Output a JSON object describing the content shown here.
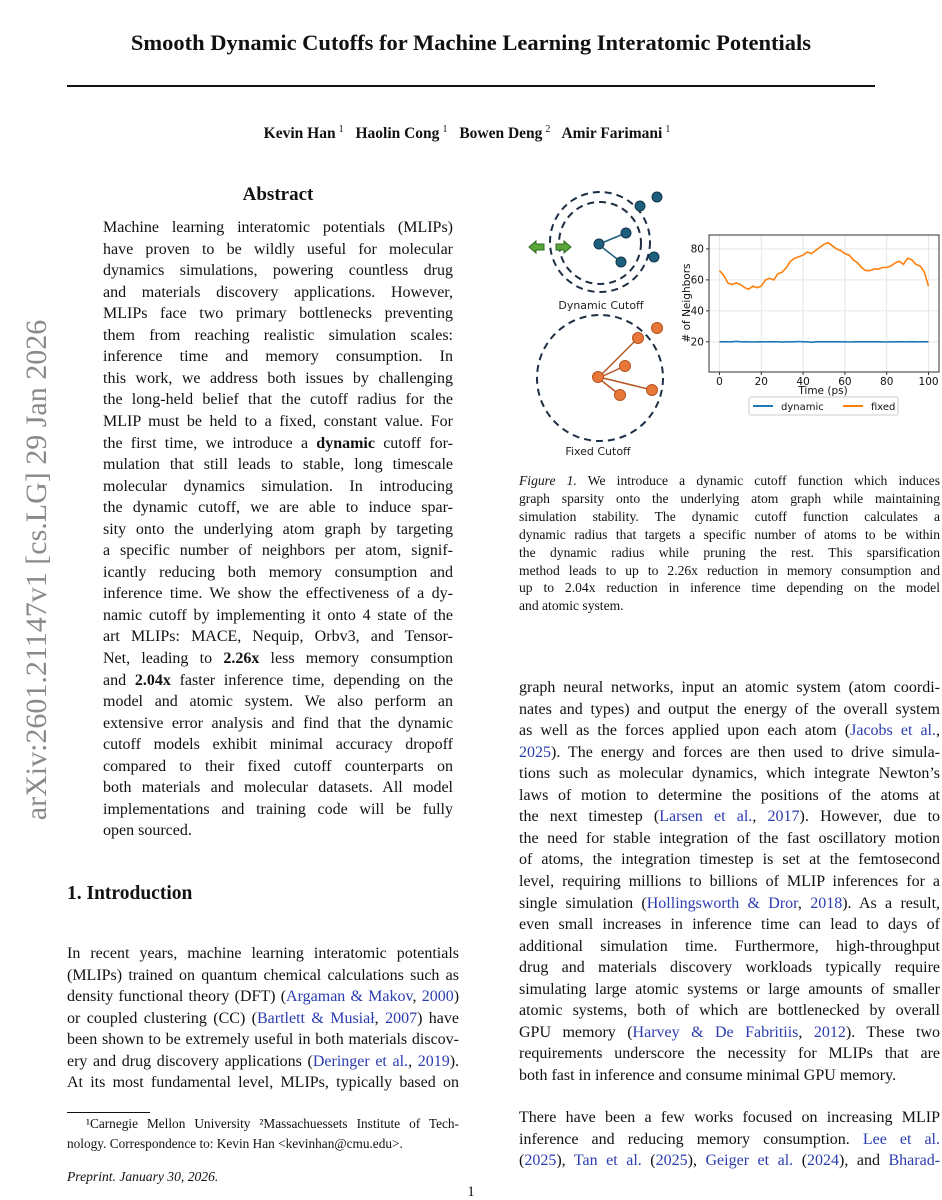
{
  "title": "Smooth Dynamic Cutoffs for Machine Learning Interatomic Potentials",
  "authors": [
    {
      "name": "Kevin Han",
      "aff": "1"
    },
    {
      "name": "Haolin Cong",
      "aff": "1"
    },
    {
      "name": "Bowen Deng",
      "aff": "2"
    },
    {
      "name": "Amir Farimani",
      "aff": "1"
    }
  ],
  "arxiv_stamp": "arXiv:2601.21147v1  [cs.LG]  29 Jan 2026",
  "abstract": {
    "heading": "Abstract",
    "lines": [
      [
        "Machine learning interatomic potentials (MLIPs)"
      ],
      [
        "have proven to be wildly useful for molecular"
      ],
      [
        "dynamics simulations, powering countless drug"
      ],
      [
        "and materials discovery applications. However,"
      ],
      [
        "MLIPs face two primary bottlenecks preventing"
      ],
      [
        "them from reaching realistic simulation scales:"
      ],
      [
        "inference time and memory consumption.  In"
      ],
      [
        "this work, we address both issues by challenging"
      ],
      [
        "the long-held belief that the cutoff radius for the"
      ],
      [
        "MLIP must be held to a fixed, constant value. For"
      ],
      [
        "the first time, we introduce a ",
        {
          "t": "dynamic",
          "s": "b"
        },
        " cutoff for-"
      ],
      [
        "mulation that still leads to stable, long timescale"
      ],
      [
        "molecular dynamics simulation.  In introducing"
      ],
      [
        "the dynamic cutoff, we are able to induce spar-"
      ],
      [
        "sity onto the underlying atom graph by targeting"
      ],
      [
        "a specific number of neighbors per atom, signif-"
      ],
      [
        "icantly reducing both memory consumption and"
      ],
      [
        "inference time. We show the effectiveness of a dy-"
      ],
      [
        "namic cutoff by implementing it onto 4 state of the"
      ],
      [
        "art MLIPs: MACE, Nequip, Orbv3, and Tensor-"
      ],
      [
        "Net, leading to ",
        {
          "t": "2.26x",
          "s": "b"
        },
        " less memory consumption"
      ],
      [
        "and ",
        {
          "t": "2.04x",
          "s": "b"
        },
        " faster inference time, depending on the"
      ],
      [
        "model and atomic system.  We also perform an"
      ],
      [
        "extensive error analysis and find that the dynamic"
      ],
      [
        "cutoff models exhibit minimal accuracy dropoff"
      ],
      [
        "compared to their fixed cutoff counterparts on"
      ],
      [
        "both materials and molecular datasets. All model"
      ],
      [
        "implementations and training code will be fully"
      ],
      [
        "open sourced."
      ]
    ]
  },
  "introduction": {
    "heading": "1. Introduction",
    "lines": [
      [
        "In recent years, machine learning interatomic potentials"
      ],
      [
        "(MLIPs) trained on quantum chemical calculations such as"
      ],
      [
        "density functional theory (DFT) (",
        {
          "t": "Argaman & Makov",
          "s": "c"
        },
        ", ",
        {
          "t": "2000",
          "s": "c"
        },
        ")"
      ],
      [
        "or coupled clustering (CC) (",
        {
          "t": "Bartlett & Musiał",
          "s": "c"
        },
        ", ",
        {
          "t": "2007",
          "s": "c"
        },
        ") have"
      ],
      [
        "been shown to be extremely useful in both materials discov-"
      ],
      [
        "ery and drug discovery applications (",
        {
          "t": "Deringer et al.",
          "s": "c"
        },
        ", ",
        {
          "t": "2019",
          "s": "c"
        },
        ")."
      ],
      [
        "At its most fundamental level, MLIPs, typically based on"
      ]
    ]
  },
  "footnote": {
    "lines": [
      [
        "¹Carnegie Mellon University ²Massachuessets Institute of Tech-"
      ],
      [
        "nology. Correspondence to: Kevin Han <kevinhan@cmu.edu>."
      ]
    ]
  },
  "preprint": "Preprint. January 30, 2026.",
  "page_number": "1",
  "figure": {
    "dynamic_label": "Dynamic Cutoff",
    "fixed_label": "Fixed Cutoff",
    "colors": {
      "dynamic_atom": "#1f5f7e",
      "fixed_atom": "#e8783a",
      "arrow": "#5aa63a",
      "circle": "#1d2e44"
    },
    "caption": [
      [
        {
          "t": "Figure 1.",
          "s": "i"
        },
        " We introduce a dynamic cutoff function which induces"
      ],
      [
        "graph sparsity onto the underlying atom graph while maintaining"
      ],
      [
        "simulation stability.  The dynamic cutoff function calculates a"
      ],
      [
        "dynamic radius that targets a specific number of atoms to be within"
      ],
      [
        "the dynamic radius while pruning the rest.  This sparsification"
      ],
      [
        "method leads to up to 2.26x reduction in memory consumption and"
      ],
      [
        "up to 2.04x reduction in inference time depending on the model"
      ],
      [
        "and atomic system."
      ]
    ]
  },
  "chart_data": {
    "type": "line",
    "xlabel": "Time (ps)",
    "ylabel": "# of Neighbors",
    "xlim": [
      -5,
      105
    ],
    "ylim": [
      0.5,
      89
    ],
    "xticks": [
      0,
      20,
      40,
      60,
      80,
      100
    ],
    "yticks": [
      20,
      40,
      60,
      80
    ],
    "grid": true,
    "legend": "bottom-center",
    "x": [
      0,
      2,
      4,
      6,
      8,
      10,
      12,
      14,
      16,
      18,
      20,
      22,
      24,
      26,
      28,
      30,
      32,
      34,
      36,
      38,
      40,
      42,
      44,
      46,
      48,
      50,
      52,
      54,
      56,
      58,
      60,
      62,
      64,
      66,
      68,
      70,
      72,
      74,
      76,
      78,
      80,
      82,
      84,
      86,
      88,
      90,
      92,
      94,
      96,
      98,
      100
    ],
    "series": [
      {
        "name": "dynamic",
        "color": "#1f77b4",
        "values": [
          20,
          20,
          20,
          20,
          20.3,
          20,
          20,
          20,
          19.9,
          20,
          20,
          20,
          20,
          20,
          20,
          19.8,
          20,
          20,
          20,
          20.2,
          20,
          20,
          19.7,
          20,
          20,
          20,
          20,
          20,
          20,
          20,
          20,
          19.9,
          20,
          20,
          20,
          20,
          20,
          20,
          20,
          20,
          19.9,
          20,
          20,
          20,
          20,
          20,
          20.1,
          20,
          20,
          20,
          20
        ]
      },
      {
        "name": "fixed",
        "color": "#ff7f0e",
        "values": [
          66,
          63,
          58,
          57,
          58,
          57,
          55,
          54,
          56,
          55,
          56,
          60,
          61,
          60,
          64,
          65,
          68,
          72,
          74,
          75,
          76,
          78,
          77,
          79,
          81,
          83,
          84,
          82,
          80,
          79,
          77,
          76,
          73,
          71,
          68,
          66,
          66,
          67,
          67,
          68,
          68,
          69,
          71,
          72,
          70,
          74,
          73,
          70,
          69,
          65,
          56
        ]
      }
    ]
  },
  "right_column": {
    "paragraphs": [
      [
        [
          "graph neural networks, input an atomic system (atom coordi-"
        ],
        [
          "nates and types) and output the energy of the overall system"
        ],
        [
          "as well as the forces applied upon each atom (",
          {
            "t": "Jacobs et al.",
            "s": "c"
          },
          ","
        ],
        [
          {
            "t": "2025",
            "s": "c"
          },
          "). The energy and forces are then used to drive simula-"
        ],
        [
          "tions such as molecular dynamics, which integrate Newton’s"
        ],
        [
          "laws of motion to determine the positions of the atoms at"
        ],
        [
          "the next timestep (",
          {
            "t": "Larsen et al.",
            "s": "c"
          },
          ", ",
          {
            "t": "2017",
            "s": "c"
          },
          ").  However, due to"
        ],
        [
          "the need for stable integration of the fast oscillatory motion"
        ],
        [
          "of atoms, the integration timestep is set at the femtosecond"
        ],
        [
          "level, requiring millions to billions of MLIP inferences for a"
        ],
        [
          "single simulation (",
          {
            "t": "Hollingsworth & Dror",
            "s": "c"
          },
          ", ",
          {
            "t": "2018",
            "s": "c"
          },
          "). As a result,"
        ],
        [
          "even small increases in inference time can lead to days of"
        ],
        [
          "additional simulation time. Furthermore, high-throughput"
        ],
        [
          "drug and materials discovery workloads typically require"
        ],
        [
          "simulating large atomic systems or large amounts of smaller"
        ],
        [
          "atomic systems, both of which are bottlenecked by overall"
        ],
        [
          "GPU memory (",
          {
            "t": "Harvey & De Fabritiis",
            "s": "c"
          },
          ", ",
          {
            "t": "2012",
            "s": "c"
          },
          ").  These two"
        ],
        [
          "requirements underscore the necessity for MLIPs that are"
        ],
        [
          "both fast in inference and consume minimal GPU memory."
        ]
      ],
      [
        [
          "There have been a few works focused on increasing MLIP"
        ],
        [
          "inference and reducing memory consumption.  ",
          {
            "t": "Lee et al.",
            "s": "c"
          }
        ],
        [
          "(",
          {
            "t": "2025",
            "s": "c"
          },
          "), ",
          {
            "t": "Tan et al.",
            "s": "c"
          },
          " (",
          {
            "t": "2025",
            "s": "c"
          },
          "), ",
          {
            "t": "Geiger et al.",
            "s": "c"
          },
          " (",
          {
            "t": "2024",
            "s": "c"
          },
          "), and ",
          {
            "t": "Bharad-",
            "s": "c"
          }
        ]
      ]
    ]
  }
}
